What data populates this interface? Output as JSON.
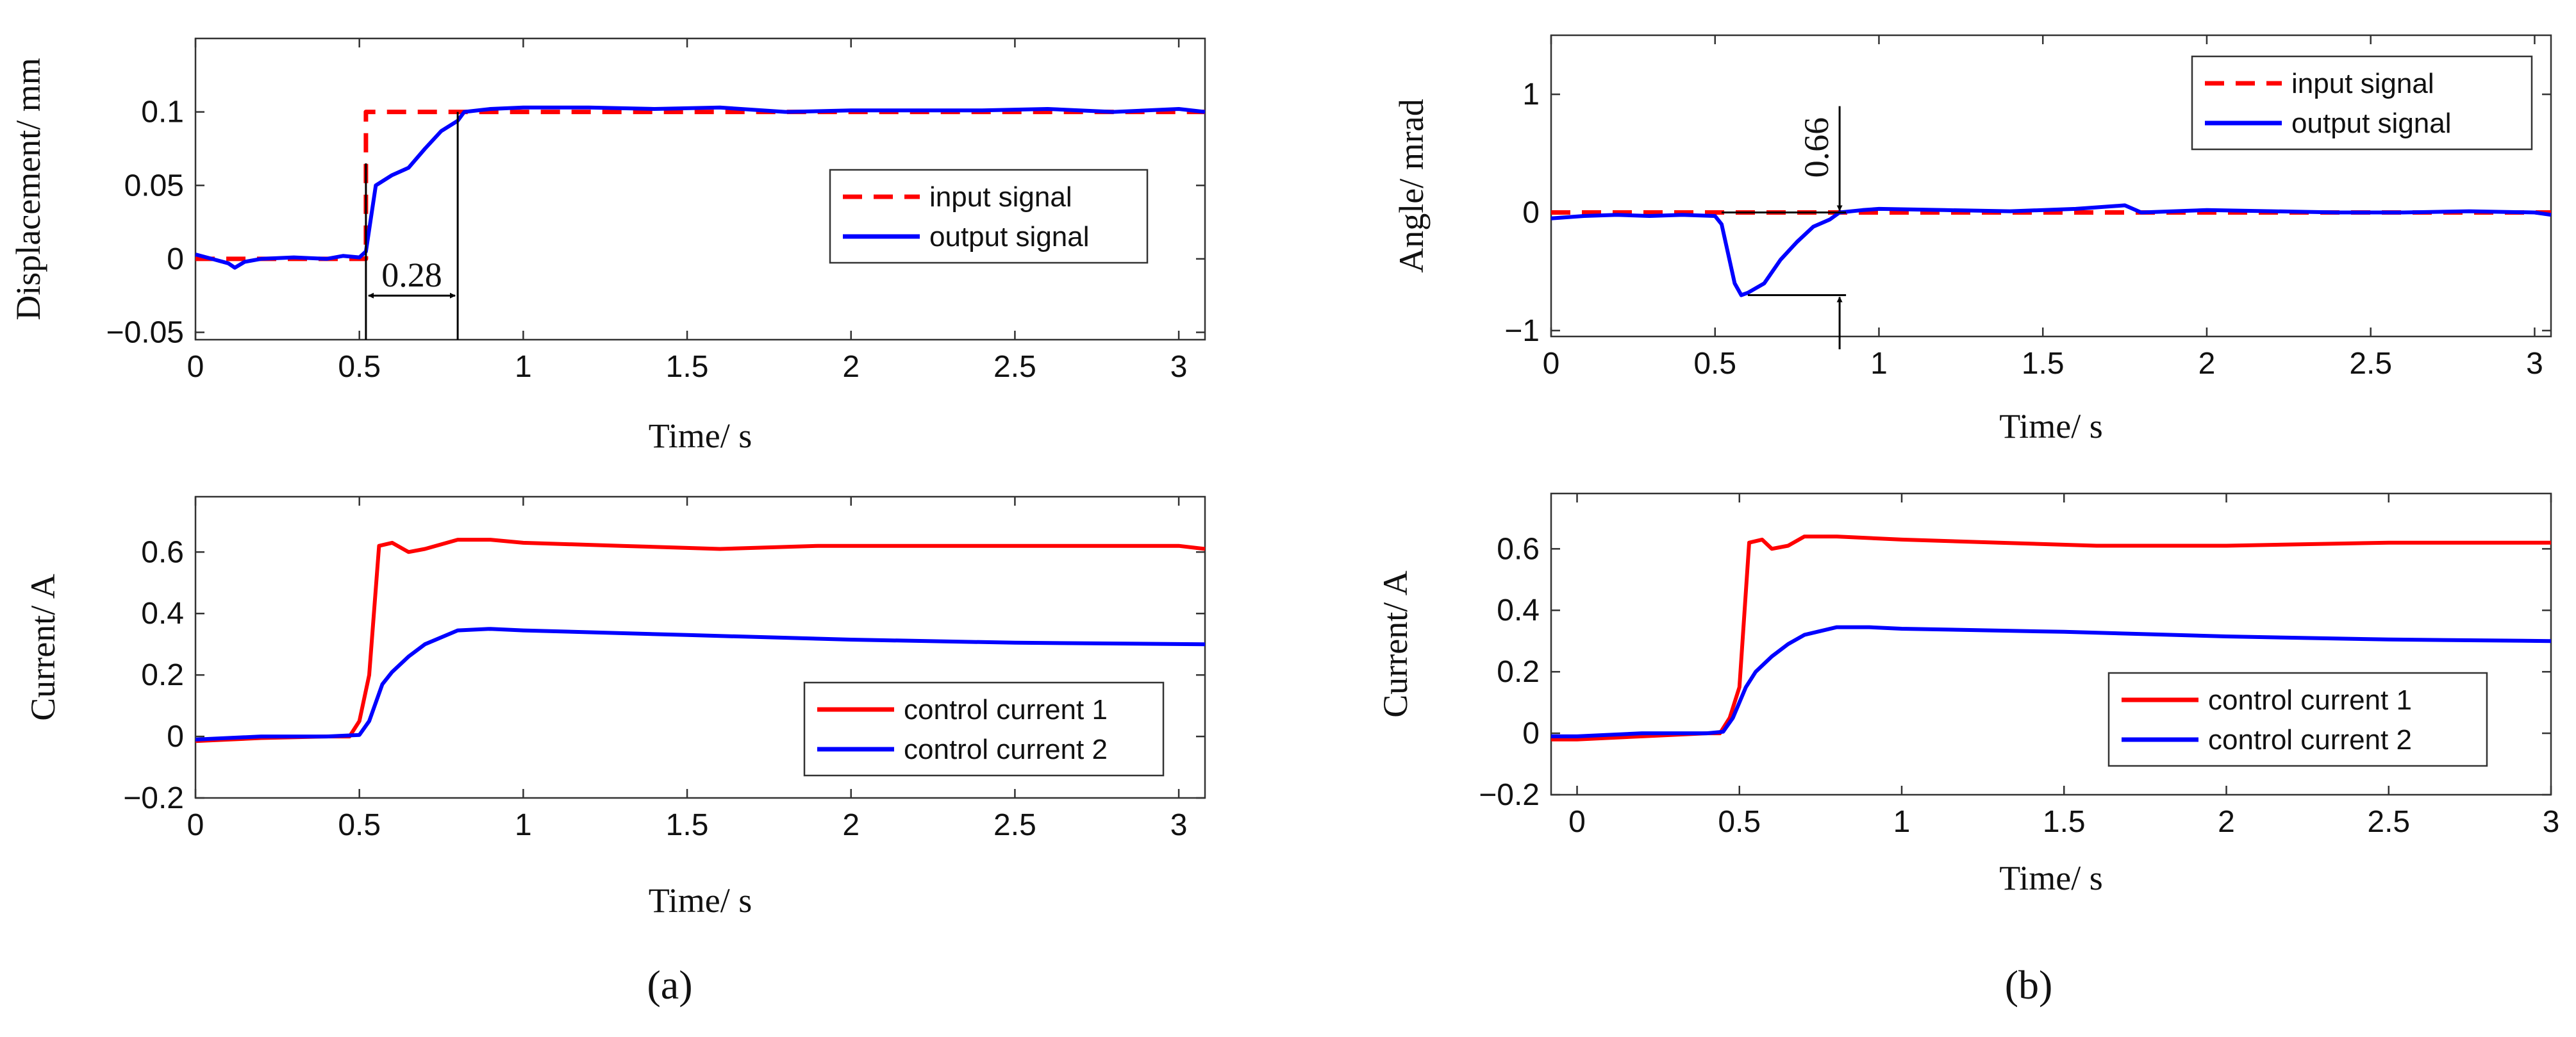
{
  "colors": {
    "red": "#ff0000",
    "blue": "#0000ff",
    "axis": "#000000"
  },
  "panel_labels": {
    "a": "(a)",
    "b": "(b)"
  },
  "chart_data": [
    {
      "id": "a-top",
      "type": "line",
      "xlabel": "Time/ s",
      "ylabel": "Displacement/ mm",
      "xlim": [
        0,
        3.08
      ],
      "ylim": [
        -0.055,
        0.15
      ],
      "xticks": [
        0,
        0.5,
        1,
        1.5,
        2,
        2.5,
        3
      ],
      "xtick_labels": [
        "0",
        "0.5",
        "1",
        "1.5",
        "2",
        "2.5",
        "3"
      ],
      "yticks": [
        -0.05,
        0,
        0.05,
        0.1
      ],
      "ytick_labels": [
        "−0.05",
        "0",
        "0.05",
        "0.1"
      ],
      "legend": [
        "input signal",
        "output signal"
      ],
      "legend_position": "middle-right",
      "series": [
        {
          "name": "input signal",
          "style": "dashed",
          "color": "red",
          "x": [
            0,
            0.52,
            0.52,
            3.08
          ],
          "y": [
            0,
            0,
            0.1,
            0.1
          ]
        },
        {
          "name": "output signal",
          "style": "solid",
          "color": "blue",
          "x": [
            0,
            0.05,
            0.1,
            0.12,
            0.15,
            0.2,
            0.3,
            0.4,
            0.45,
            0.5,
            0.52,
            0.55,
            0.6,
            0.65,
            0.7,
            0.75,
            0.8,
            0.82,
            0.9,
            1.0,
            1.2,
            1.4,
            1.6,
            1.8,
            2.0,
            2.2,
            2.4,
            2.6,
            2.8,
            3.0,
            3.08
          ],
          "y": [
            0.003,
            0.0,
            -0.003,
            -0.006,
            -0.002,
            0.0,
            0.001,
            0.0,
            0.002,
            0.001,
            0.005,
            0.05,
            0.057,
            0.062,
            0.075,
            0.087,
            0.094,
            0.1,
            0.102,
            0.103,
            0.103,
            0.102,
            0.103,
            0.1,
            0.101,
            0.101,
            0.101,
            0.102,
            0.1,
            0.102,
            0.1
          ]
        }
      ],
      "annotations": [
        {
          "text": "0.28",
          "x_start": 0.52,
          "x_end": 0.8,
          "y": -0.025
        }
      ]
    },
    {
      "id": "a-bottom",
      "type": "line",
      "xlabel": "Time/ s",
      "ylabel": "Current/ A",
      "xlim": [
        0,
        3.08
      ],
      "ylim": [
        -0.2,
        0.78
      ],
      "xticks": [
        0,
        0.5,
        1,
        1.5,
        2,
        2.5,
        3
      ],
      "xtick_labels": [
        "0",
        "0.5",
        "1",
        "1.5",
        "2",
        "2.5",
        "3"
      ],
      "yticks": [
        -0.2,
        0,
        0.2,
        0.4,
        0.6
      ],
      "ytick_labels": [
        "−0.2",
        "0",
        "0.2",
        "0.4",
        "0.6"
      ],
      "legend": [
        "control current 1",
        "control current 2"
      ],
      "legend_position": "lower-right",
      "series": [
        {
          "name": "control current 1",
          "style": "solid",
          "color": "red",
          "x": [
            0,
            0.2,
            0.4,
            0.47,
            0.5,
            0.53,
            0.56,
            0.6,
            0.65,
            0.7,
            0.8,
            0.9,
            1.0,
            1.3,
            1.6,
            1.9,
            2.2,
            2.5,
            2.8,
            3.0,
            3.08
          ],
          "y": [
            -0.015,
            -0.005,
            0.0,
            0.0,
            0.05,
            0.2,
            0.62,
            0.63,
            0.6,
            0.61,
            0.64,
            0.64,
            0.63,
            0.62,
            0.61,
            0.62,
            0.62,
            0.62,
            0.62,
            0.62,
            0.61
          ]
        },
        {
          "name": "control current 2",
          "style": "solid",
          "color": "blue",
          "x": [
            0,
            0.2,
            0.4,
            0.5,
            0.53,
            0.57,
            0.6,
            0.65,
            0.7,
            0.8,
            0.9,
            1.0,
            1.5,
            2.0,
            2.5,
            3.08
          ],
          "y": [
            -0.01,
            0.0,
            0.0,
            0.005,
            0.05,
            0.17,
            0.21,
            0.26,
            0.3,
            0.345,
            0.35,
            0.345,
            0.33,
            0.315,
            0.305,
            0.3
          ]
        }
      ]
    },
    {
      "id": "b-top",
      "type": "line",
      "xlabel": "Time/ s",
      "ylabel": "Angle/ mrad",
      "xlim": [
        0,
        3.05
      ],
      "ylim": [
        -1.05,
        1.5
      ],
      "xticks": [
        0,
        0.5,
        1,
        1.5,
        2,
        2.5,
        3
      ],
      "xtick_labels": [
        "0",
        "0.5",
        "1",
        "1.5",
        "2",
        "2.5",
        "3"
      ],
      "yticks": [
        -1,
        0,
        1
      ],
      "ytick_labels": [
        "−1",
        "0",
        "1"
      ],
      "legend": [
        "input signal",
        "output signal"
      ],
      "legend_position": "top-right",
      "series": [
        {
          "name": "input signal",
          "style": "dashed",
          "color": "red",
          "x": [
            0,
            3.05
          ],
          "y": [
            0,
            0
          ]
        },
        {
          "name": "output signal",
          "style": "solid",
          "color": "blue",
          "x": [
            0,
            0.1,
            0.2,
            0.3,
            0.4,
            0.5,
            0.52,
            0.54,
            0.56,
            0.58,
            0.6,
            0.65,
            0.7,
            0.75,
            0.8,
            0.85,
            0.88,
            0.95,
            1.0,
            1.2,
            1.4,
            1.6,
            1.75,
            1.8,
            2.0,
            2.2,
            2.4,
            2.6,
            2.8,
            3.0,
            3.05
          ],
          "y": [
            -0.05,
            -0.03,
            -0.02,
            -0.03,
            -0.02,
            -0.03,
            -0.1,
            -0.35,
            -0.6,
            -0.7,
            -0.68,
            -0.6,
            -0.4,
            -0.25,
            -0.12,
            -0.06,
            0.0,
            0.02,
            0.03,
            0.02,
            0.01,
            0.03,
            0.06,
            0.0,
            0.02,
            0.01,
            0.0,
            0.0,
            0.01,
            0.0,
            -0.02
          ]
        }
      ],
      "annotations": [
        {
          "text": "0.66",
          "x": 0.88,
          "y_low": -0.7,
          "y_high": 0.0
        }
      ]
    },
    {
      "id": "b-bottom",
      "type": "line",
      "xlabel": "Time/ s",
      "ylabel": "Current/ A",
      "xlim": [
        -0.08,
        3.0
      ],
      "ylim": [
        -0.2,
        0.78
      ],
      "xticks": [
        0,
        0.5,
        1,
        1.5,
        2,
        2.5,
        3
      ],
      "xtick_labels": [
        "0",
        "0.5",
        "1",
        "1.5",
        "2",
        "2.5",
        "3"
      ],
      "yticks": [
        -0.2,
        0,
        0.2,
        0.4,
        0.6
      ],
      "ytick_labels": [
        "−0.2",
        "0",
        "0.2",
        "0.4",
        "0.6"
      ],
      "legend": [
        "control current 1",
        "control current 2"
      ],
      "legend_position": "lower-right",
      "series": [
        {
          "name": "control current 1",
          "style": "solid",
          "color": "red",
          "x": [
            -0.08,
            0.0,
            0.2,
            0.4,
            0.44,
            0.47,
            0.5,
            0.53,
            0.57,
            0.6,
            0.65,
            0.7,
            0.8,
            1.0,
            1.3,
            1.6,
            2.0,
            2.5,
            3.0
          ],
          "y": [
            -0.02,
            -0.02,
            -0.01,
            0.0,
            0.0,
            0.05,
            0.15,
            0.62,
            0.63,
            0.6,
            0.61,
            0.64,
            0.64,
            0.63,
            0.62,
            0.61,
            0.61,
            0.62,
            0.62
          ]
        },
        {
          "name": "control current 2",
          "style": "solid",
          "color": "blue",
          "x": [
            -0.08,
            0.0,
            0.2,
            0.4,
            0.45,
            0.48,
            0.52,
            0.55,
            0.6,
            0.65,
            0.7,
            0.8,
            0.9,
            1.0,
            1.5,
            2.0,
            2.5,
            3.0
          ],
          "y": [
            -0.01,
            -0.01,
            0.0,
            0.0,
            0.005,
            0.05,
            0.15,
            0.2,
            0.25,
            0.29,
            0.32,
            0.345,
            0.345,
            0.34,
            0.33,
            0.315,
            0.305,
            0.3
          ]
        }
      ]
    }
  ]
}
